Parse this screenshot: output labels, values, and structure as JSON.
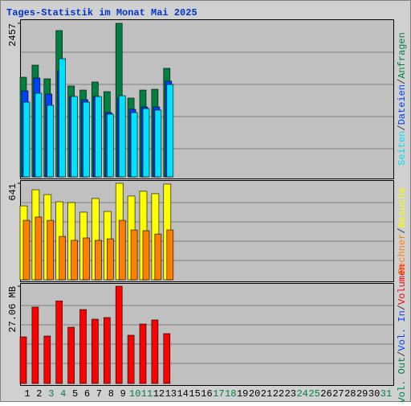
{
  "chart_data": [
    {
      "type": "bar",
      "title": "Tages-Statistik im Monat Mai 2025",
      "separator": "/",
      "ylim": [
        0,
        2457
      ],
      "yticks": [
        2457
      ],
      "series": [
        {
          "name": "Anfragen",
          "color": "#008040",
          "values": [
            1595,
            1788,
            1569,
            2341,
            1454,
            1389,
            1518,
            1364,
            2457,
            1261,
            1389,
            1402,
            1737,
            null,
            null,
            null,
            null,
            null,
            null,
            null,
            null,
            null,
            null,
            null,
            null,
            null,
            null,
            null,
            null,
            null,
            null
          ]
        },
        {
          "name": "Dateien",
          "color": "#0040ff",
          "values": [
            1376,
            1582,
            1325,
            1698,
            1286,
            1235,
            1286,
            1029,
            1261,
            1081,
            1119,
            1119,
            1531,
            null,
            null,
            null,
            null,
            null,
            null,
            null,
            null,
            null,
            null,
            null,
            null,
            null,
            null,
            null,
            null,
            null,
            null
          ]
        },
        {
          "name": "Seiten",
          "color": "#00e0ff",
          "values": [
            1196,
            1338,
            1145,
            1891,
            1286,
            1196,
            1286,
            1003,
            1299,
            1029,
            1093,
            1068,
            1479,
            null,
            null,
            null,
            null,
            null,
            null,
            null,
            null,
            null,
            null,
            null,
            null,
            null,
            null,
            null,
            null,
            null,
            null
          ]
        }
      ]
    },
    {
      "type": "bar",
      "ylim": [
        0,
        641
      ],
      "yticks": [
        641
      ],
      "series": [
        {
          "name": "Besuche",
          "color": "#ffff00",
          "values": [
            491,
            598,
            566,
            518,
            513,
            449,
            540,
            454,
            641,
            556,
            588,
            572,
            636,
            null,
            null,
            null,
            null,
            null,
            null,
            null,
            null,
            null,
            null,
            null,
            null,
            null,
            null,
            null,
            null,
            null,
            null
          ]
        },
        {
          "name": "Rechner",
          "color": "#ff8000",
          "values": [
            395,
            417,
            395,
            288,
            262,
            278,
            262,
            272,
            395,
            331,
            326,
            304,
            331,
            null,
            null,
            null,
            null,
            null,
            null,
            null,
            null,
            null,
            null,
            null,
            null,
            null,
            null,
            null,
            null,
            null,
            null
          ]
        }
      ]
    },
    {
      "type": "bar",
      "ylim": [
        0,
        27.06
      ],
      "yticks": [
        {
          "value": 27.06,
          "label": "27.06 MB"
        }
      ],
      "categories": [
        "1",
        "2",
        "3",
        "4",
        "5",
        "6",
        "7",
        "8",
        "9",
        "10",
        "11",
        "12",
        "13",
        "14",
        "15",
        "16",
        "17",
        "18",
        "19",
        "20",
        "21",
        "22",
        "23",
        "24",
        "25",
        "26",
        "27",
        "28",
        "29",
        "30",
        "31"
      ],
      "category_colors": [
        "#000000",
        "#000000",
        "#008040",
        "#008040",
        "#000000",
        "#000000",
        "#000000",
        "#000000",
        "#000000",
        "#008040",
        "#008040",
        "#000000",
        "#000000",
        "#000000",
        "#000000",
        "#000000",
        "#008040",
        "#008040",
        "#000000",
        "#000000",
        "#000000",
        "#000000",
        "#000000",
        "#008040",
        "#008040",
        "#000000",
        "#000000",
        "#000000",
        "#000000",
        "#000000",
        "#008040"
      ],
      "series": [
        {
          "name": "Volumen",
          "color": "#ff0000",
          "values": [
            12.97,
            21.25,
            13.19,
            22.98,
            15.65,
            20.57,
            17.89,
            18.34,
            27.06,
            13.42,
            16.55,
            17.67,
            13.87,
            null,
            null,
            null,
            null,
            null,
            null,
            null,
            null,
            null,
            null,
            null,
            null,
            null,
            null,
            null,
            null,
            null,
            null
          ]
        },
        {
          "name": "Vol. In",
          "color": "#0040ff",
          "values": [
            null,
            null,
            null,
            null,
            null,
            null,
            null,
            null,
            null,
            null,
            null,
            null,
            null,
            null,
            null,
            null,
            null,
            null,
            null,
            null,
            null,
            null,
            null,
            null,
            null,
            null,
            null,
            null,
            null,
            null,
            null
          ]
        },
        {
          "name": "Vol. Out",
          "color": "#008040",
          "values": [
            null,
            null,
            null,
            null,
            null,
            null,
            null,
            null,
            null,
            null,
            null,
            null,
            null,
            null,
            null,
            null,
            null,
            null,
            null,
            null,
            null,
            null,
            null,
            null,
            null,
            null,
            null,
            null,
            null,
            null,
            null
          ]
        }
      ]
    }
  ]
}
